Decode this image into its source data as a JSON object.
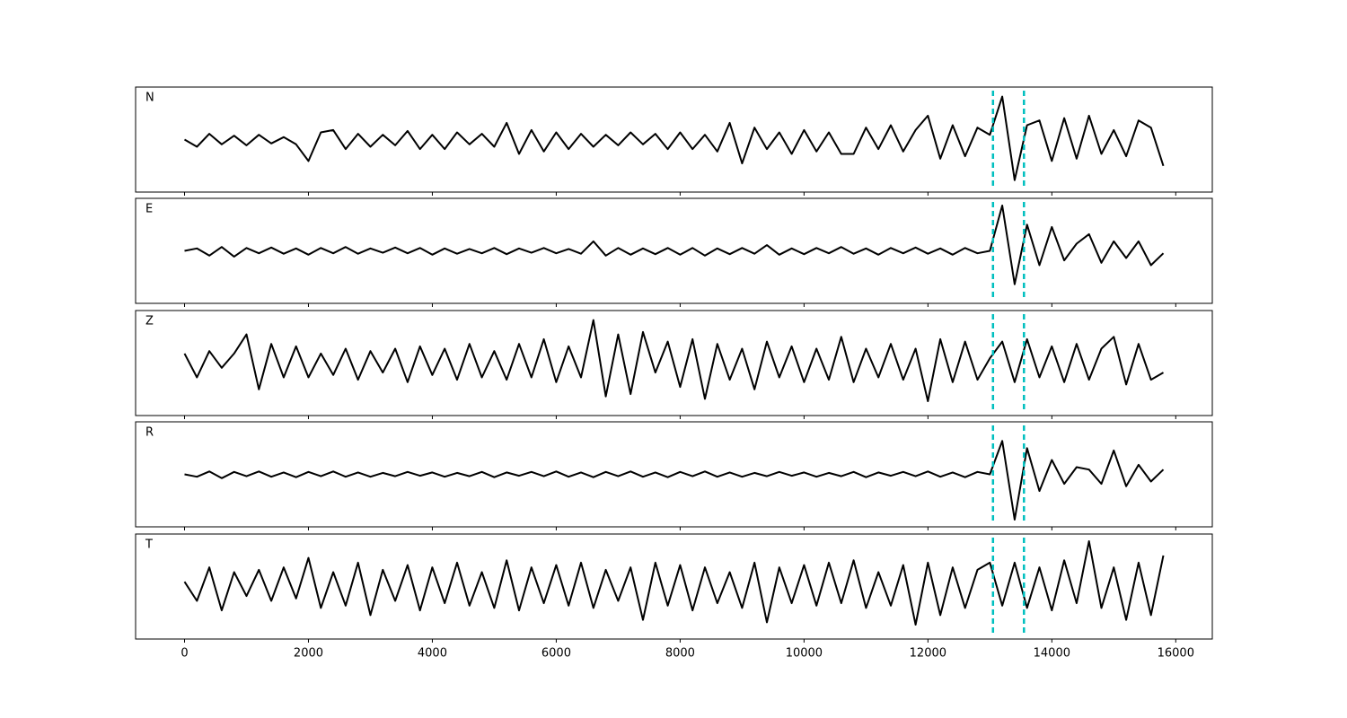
{
  "chart_data": {
    "type": "line",
    "subplots": true,
    "x": [
      0,
      200,
      400,
      600,
      800,
      1000,
      1200,
      1400,
      1600,
      1800,
      2000,
      2200,
      2400,
      2600,
      2800,
      3000,
      3200,
      3400,
      3600,
      3800,
      4000,
      4200,
      4400,
      4600,
      4800,
      5000,
      5200,
      5400,
      5600,
      5800,
      6000,
      6200,
      6400,
      6600,
      6800,
      7000,
      7200,
      7400,
      7600,
      7800,
      8000,
      8200,
      8400,
      8600,
      8800,
      9000,
      9200,
      9400,
      9600,
      9800,
      10000,
      10200,
      10400,
      10600,
      10800,
      11000,
      11200,
      11400,
      11600,
      11800,
      12000,
      12200,
      12400,
      12600,
      12800,
      13000,
      13200,
      13400,
      13600,
      13800,
      14000,
      14200,
      14400,
      14600,
      14800,
      15000,
      15200,
      15400,
      15600,
      15800
    ],
    "xlim": [
      -790,
      16590
    ],
    "xticks": [
      0,
      2000,
      4000,
      6000,
      8000,
      10000,
      12000,
      14000,
      16000
    ],
    "ylim": [
      -1.1,
      1.1
    ],
    "vlines": [
      13050,
      13550
    ],
    "vline_color": "#00bfbf",
    "series": [
      {
        "name": "N",
        "color": "#000000",
        "values": [
          0.0,
          -0.15,
          0.12,
          -0.1,
          0.08,
          -0.12,
          0.1,
          -0.08,
          0.05,
          -0.1,
          -0.45,
          0.15,
          0.2,
          -0.2,
          0.12,
          -0.15,
          0.1,
          -0.12,
          0.18,
          -0.2,
          0.1,
          -0.2,
          0.15,
          -0.1,
          0.12,
          -0.15,
          0.35,
          -0.3,
          0.2,
          -0.25,
          0.15,
          -0.2,
          0.12,
          -0.15,
          0.1,
          -0.12,
          0.15,
          -0.1,
          0.12,
          -0.2,
          0.15,
          -0.2,
          0.1,
          -0.25,
          0.35,
          -0.5,
          0.25,
          -0.2,
          0.15,
          -0.3,
          0.2,
          -0.25,
          0.15,
          -0.3,
          -0.3,
          0.25,
          -0.2,
          0.3,
          -0.25,
          0.2,
          0.5,
          -0.4,
          0.3,
          -0.35,
          0.25,
          0.1,
          0.9,
          -0.85,
          0.3,
          0.4,
          -0.45,
          0.45,
          -0.4,
          0.5,
          -0.3,
          0.2,
          -0.35,
          0.4,
          0.25,
          -0.55
        ]
      },
      {
        "name": "E",
        "color": "#000000",
        "values": [
          0,
          0.05,
          -0.1,
          0.08,
          -0.12,
          0.06,
          -0.05,
          0.07,
          -0.06,
          0.05,
          -0.08,
          0.06,
          -0.05,
          0.08,
          -0.06,
          0.05,
          -0.04,
          0.07,
          -0.05,
          0.06,
          -0.08,
          0.05,
          -0.06,
          0.04,
          -0.05,
          0.06,
          -0.07,
          0.05,
          -0.04,
          0.06,
          -0.05,
          0.04,
          -0.06,
          0.2,
          -0.1,
          0.06,
          -0.08,
          0.05,
          -0.07,
          0.06,
          -0.08,
          0.06,
          -0.1,
          0.05,
          -0.07,
          0.06,
          -0.06,
          0.12,
          -0.08,
          0.05,
          -0.07,
          0.06,
          -0.05,
          0.08,
          -0.06,
          0.05,
          -0.08,
          0.06,
          -0.05,
          0.07,
          -0.06,
          0.05,
          -0.08,
          0.06,
          -0.05,
          0.0,
          0.95,
          -0.7,
          0.55,
          -0.3,
          0.5,
          -0.2,
          0.15,
          0.35,
          -0.25,
          0.2,
          -0.15,
          0.2,
          -0.3,
          -0.05
        ]
      },
      {
        "name": "Z",
        "color": "#000000",
        "values": [
          0.2,
          -0.3,
          0.25,
          -0.1,
          0.2,
          0.6,
          -0.55,
          0.4,
          -0.3,
          0.35,
          -0.3,
          0.2,
          -0.25,
          0.3,
          -0.35,
          0.25,
          -0.2,
          0.3,
          -0.4,
          0.35,
          -0.25,
          0.3,
          -0.35,
          0.4,
          -0.3,
          0.25,
          -0.35,
          0.4,
          -0.3,
          0.5,
          -0.4,
          0.35,
          -0.3,
          0.9,
          -0.7,
          0.6,
          -0.65,
          0.65,
          -0.2,
          0.45,
          -0.5,
          0.5,
          -0.75,
          0.4,
          -0.35,
          0.3,
          -0.55,
          0.45,
          -0.3,
          0.35,
          -0.4,
          0.3,
          -0.35,
          0.55,
          -0.4,
          0.3,
          -0.3,
          0.4,
          -0.35,
          0.3,
          -0.8,
          0.5,
          -0.4,
          0.45,
          -0.35,
          0.1,
          0.45,
          -0.4,
          0.5,
          -0.3,
          0.35,
          -0.4,
          0.4,
          -0.35,
          0.3,
          0.55,
          -0.45,
          0.4,
          -0.35,
          -0.2
        ]
      },
      {
        "name": "R",
        "color": "#000000",
        "values": [
          0,
          -0.05,
          0.06,
          -0.08,
          0.05,
          -0.04,
          0.06,
          -0.05,
          0.04,
          -0.06,
          0.05,
          -0.04,
          0.06,
          -0.05,
          0.04,
          -0.05,
          0.03,
          -0.04,
          0.05,
          -0.03,
          0.04,
          -0.05,
          0.03,
          -0.04,
          0.05,
          -0.06,
          0.04,
          -0.03,
          0.05,
          -0.04,
          0.06,
          -0.05,
          0.04,
          -0.06,
          0.05,
          -0.04,
          0.06,
          -0.05,
          0.04,
          -0.06,
          0.05,
          -0.04,
          0.06,
          -0.05,
          0.04,
          -0.05,
          0.03,
          -0.04,
          0.05,
          -0.03,
          0.04,
          -0.05,
          0.03,
          -0.04,
          0.05,
          -0.06,
          0.04,
          -0.03,
          0.05,
          -0.04,
          0.06,
          -0.05,
          0.04,
          -0.06,
          0.05,
          0.0,
          0.7,
          -0.95,
          0.55,
          -0.35,
          0.3,
          -0.2,
          0.15,
          0.1,
          -0.2,
          0.5,
          -0.25,
          0.2,
          -0.15,
          0.1
        ]
      },
      {
        "name": "T",
        "color": "#000000",
        "values": [
          0.1,
          -0.3,
          0.4,
          -0.5,
          0.3,
          -0.2,
          0.35,
          -0.3,
          0.4,
          -0.25,
          0.6,
          -0.45,
          0.3,
          -0.4,
          0.5,
          -0.6,
          0.35,
          -0.3,
          0.45,
          -0.5,
          0.4,
          -0.35,
          0.5,
          -0.4,
          0.3,
          -0.45,
          0.55,
          -0.5,
          0.4,
          -0.35,
          0.45,
          -0.4,
          0.5,
          -0.45,
          0.35,
          -0.3,
          0.4,
          -0.7,
          0.5,
          -0.4,
          0.45,
          -0.5,
          0.4,
          -0.35,
          0.3,
          -0.45,
          0.5,
          -0.75,
          0.4,
          -0.35,
          0.45,
          -0.4,
          0.5,
          -0.35,
          0.55,
          -0.45,
          0.3,
          -0.4,
          0.45,
          -0.8,
          0.5,
          -0.6,
          0.4,
          -0.45,
          0.35,
          0.5,
          -0.4,
          0.5,
          -0.45,
          0.4,
          -0.5,
          0.55,
          -0.35,
          0.95,
          -0.45,
          0.4,
          -0.7,
          0.5,
          -0.6,
          0.65
        ]
      }
    ]
  }
}
